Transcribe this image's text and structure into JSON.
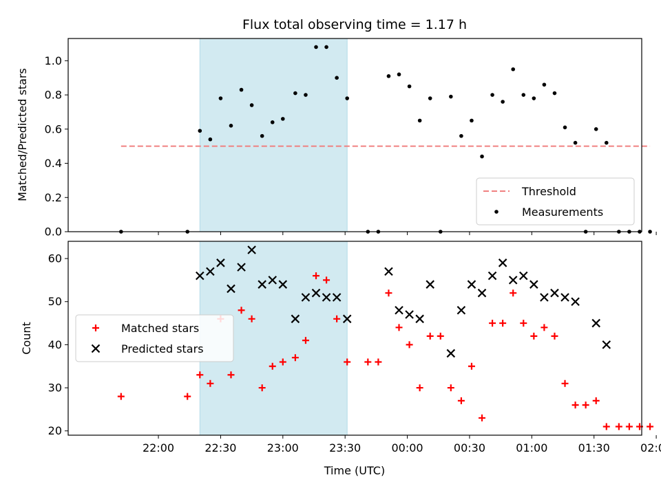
{
  "chart_data": [
    {
      "type": "scatter",
      "title": "Flux total observing time = 1.17 h",
      "xlabel": "",
      "ylabel": "Matched/Predicted stars",
      "ylim": [
        0,
        1.13
      ],
      "yticks": [
        "0.0",
        "0.2",
        "0.4",
        "0.6",
        "0.8",
        "1.0"
      ],
      "ytick_values": [
        0,
        0.2,
        0.4,
        0.6,
        0.8,
        1.0
      ],
      "xlim_minutes_after_2130": [
        -13.5,
        263
      ],
      "highlight_span": {
        "start": "22:20",
        "end": "23:31",
        "color": "#add8e6"
      },
      "threshold": {
        "name": "Threshold",
        "value": 0.5,
        "x_start": "21:42",
        "x_end": "01:57",
        "color": "#f08080"
      },
      "legend": {
        "position": "lower right",
        "entries": [
          "Threshold",
          "Measurements"
        ]
      },
      "series": [
        {
          "name": "Measurements",
          "color": "#000000",
          "marker": "dot",
          "points": [
            [
              "21:42",
              0.0
            ],
            [
              "22:14",
              0.0
            ],
            [
              "22:20",
              0.59
            ],
            [
              "22:25",
              0.54
            ],
            [
              "22:30",
              0.78
            ],
            [
              "22:35",
              0.62
            ],
            [
              "22:40",
              0.83
            ],
            [
              "22:45",
              0.74
            ],
            [
              "22:50",
              0.56
            ],
            [
              "22:55",
              0.64
            ],
            [
              "23:00",
              0.66
            ],
            [
              "23:06",
              0.81
            ],
            [
              "23:11",
              0.8
            ],
            [
              "23:16",
              1.08
            ],
            [
              "23:21",
              1.08
            ],
            [
              "23:26",
              0.9
            ],
            [
              "23:31",
              0.78
            ],
            [
              "23:41",
              0.0
            ],
            [
              "23:46",
              0.0
            ],
            [
              "23:51",
              0.91
            ],
            [
              "23:56",
              0.92
            ],
            [
              "00:01",
              0.85
            ],
            [
              "00:06",
              0.65
            ],
            [
              "00:11",
              0.78
            ],
            [
              "00:16",
              0.0
            ],
            [
              "00:21",
              0.79
            ],
            [
              "00:26",
              0.56
            ],
            [
              "00:31",
              0.65
            ],
            [
              "00:36",
              0.44
            ],
            [
              "00:41",
              0.8
            ],
            [
              "00:46",
              0.76
            ],
            [
              "00:51",
              0.95
            ],
            [
              "00:56",
              0.8
            ],
            [
              "01:01",
              0.78
            ],
            [
              "01:06",
              0.86
            ],
            [
              "01:11",
              0.81
            ],
            [
              "01:16",
              0.61
            ],
            [
              "01:21",
              0.52
            ],
            [
              "01:26",
              0.0
            ],
            [
              "01:31",
              0.6
            ],
            [
              "01:36",
              0.52
            ],
            [
              "01:42",
              0.0
            ],
            [
              "01:47",
              0.0
            ],
            [
              "01:52",
              0.0
            ],
            [
              "01:57",
              0.0
            ]
          ]
        }
      ]
    },
    {
      "type": "scatter",
      "title": "",
      "xlabel": "Time (UTC)",
      "ylabel": "Count",
      "ylim": [
        19,
        64
      ],
      "yticks": [
        "20",
        "30",
        "40",
        "50",
        "60"
      ],
      "ytick_values": [
        20,
        30,
        40,
        50,
        60
      ],
      "xticks": [
        "22:00",
        "22:30",
        "23:00",
        "23:30",
        "00:00",
        "00:30",
        "01:00",
        "01:30",
        "02:00"
      ],
      "xtick_minutes_after_2130": [
        30,
        60,
        90,
        120,
        150,
        180,
        210,
        240,
        270
      ],
      "highlight_span": {
        "start": "22:20",
        "end": "23:31",
        "color": "#add8e6"
      },
      "legend": {
        "position": "center left",
        "entries": [
          "Matched stars",
          "Predicted stars"
        ]
      },
      "series": [
        {
          "name": "Matched stars",
          "color": "#ff0000",
          "marker": "plus",
          "points": [
            [
              "21:42",
              28
            ],
            [
              "22:14",
              28
            ],
            [
              "22:20",
              33
            ],
            [
              "22:25",
              31
            ],
            [
              "22:30",
              46
            ],
            [
              "22:35",
              33
            ],
            [
              "22:40",
              48
            ],
            [
              "22:45",
              46
            ],
            [
              "22:50",
              30
            ],
            [
              "22:55",
              35
            ],
            [
              "23:00",
              36
            ],
            [
              "23:06",
              37
            ],
            [
              "23:11",
              41
            ],
            [
              "23:16",
              56
            ],
            [
              "23:21",
              55
            ],
            [
              "23:26",
              46
            ],
            [
              "23:31",
              36
            ],
            [
              "23:41",
              36
            ],
            [
              "23:46",
              36
            ],
            [
              "23:51",
              52
            ],
            [
              "23:56",
              44
            ],
            [
              "00:01",
              40
            ],
            [
              "00:06",
              30
            ],
            [
              "00:11",
              42
            ],
            [
              "00:16",
              42
            ],
            [
              "00:21",
              30
            ],
            [
              "00:26",
              27
            ],
            [
              "00:31",
              35
            ],
            [
              "00:36",
              23
            ],
            [
              "00:41",
              45
            ],
            [
              "00:46",
              45
            ],
            [
              "00:51",
              52
            ],
            [
              "00:56",
              45
            ],
            [
              "01:01",
              42
            ],
            [
              "01:06",
              44
            ],
            [
              "01:11",
              42
            ],
            [
              "01:16",
              31
            ],
            [
              "01:21",
              26
            ],
            [
              "01:26",
              26
            ],
            [
              "01:31",
              27
            ],
            [
              "01:36",
              21
            ],
            [
              "01:42",
              21
            ],
            [
              "01:47",
              21
            ],
            [
              "01:52",
              21
            ],
            [
              "01:57",
              21
            ]
          ]
        },
        {
          "name": "Predicted stars",
          "color": "#000000",
          "marker": "x",
          "points": [
            [
              "22:20",
              56
            ],
            [
              "22:25",
              57
            ],
            [
              "22:30",
              59
            ],
            [
              "22:35",
              53
            ],
            [
              "22:40",
              58
            ],
            [
              "22:45",
              62
            ],
            [
              "22:50",
              54
            ],
            [
              "22:55",
              55
            ],
            [
              "23:00",
              54
            ],
            [
              "23:06",
              46
            ],
            [
              "23:11",
              51
            ],
            [
              "23:16",
              52
            ],
            [
              "23:21",
              51
            ],
            [
              "23:26",
              51
            ],
            [
              "23:31",
              46
            ],
            [
              "23:51",
              57
            ],
            [
              "23:56",
              48
            ],
            [
              "00:01",
              47
            ],
            [
              "00:06",
              46
            ],
            [
              "00:11",
              54
            ],
            [
              "00:21",
              38
            ],
            [
              "00:26",
              48
            ],
            [
              "00:31",
              54
            ],
            [
              "00:36",
              52
            ],
            [
              "00:41",
              56
            ],
            [
              "00:46",
              59
            ],
            [
              "00:51",
              55
            ],
            [
              "00:56",
              56
            ],
            [
              "01:01",
              54
            ],
            [
              "01:06",
              51
            ],
            [
              "01:11",
              52
            ],
            [
              "01:16",
              51
            ],
            [
              "01:21",
              50
            ],
            [
              "01:31",
              45
            ],
            [
              "01:36",
              40
            ]
          ]
        }
      ]
    }
  ]
}
